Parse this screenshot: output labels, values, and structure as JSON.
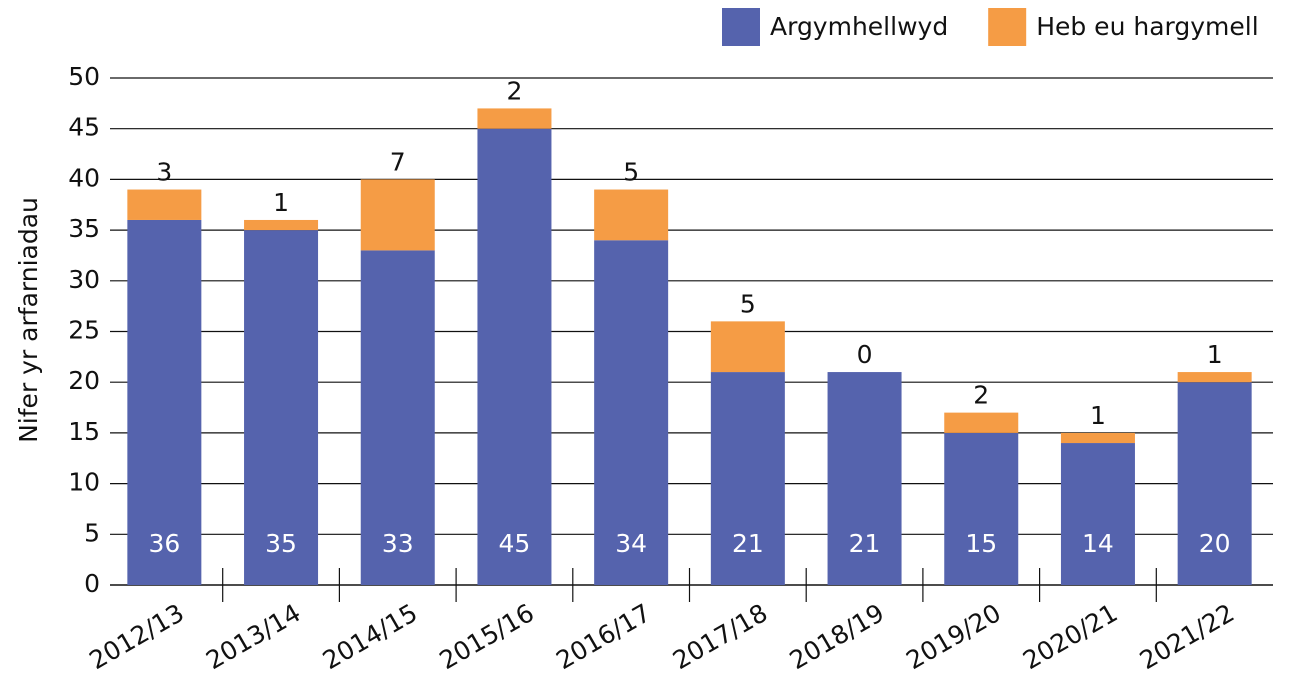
{
  "chart_data": {
    "type": "stacked_bar",
    "y_label": "Nifer yr arfarniadau",
    "categories": [
      "2012/13",
      "2013/14",
      "2014/15",
      "2015/16",
      "2016/17",
      "2017/18",
      "2018/19",
      "2019/20",
      "2020/21",
      "2021/22"
    ],
    "series": [
      {
        "name": "Argymhellwyd",
        "color": "#5563ad",
        "values": [
          36,
          35,
          33,
          45,
          34,
          21,
          21,
          15,
          14,
          20
        ]
      },
      {
        "name": "Heb eu hargymell",
        "color": "#f59c45",
        "values": [
          3,
          1,
          7,
          2,
          5,
          5,
          0,
          2,
          1,
          1
        ]
      }
    ],
    "ylim": [
      0,
      50
    ],
    "yticks": [
      0,
      5,
      10,
      15,
      20,
      25,
      30,
      35,
      40,
      45,
      50
    ],
    "grid": true,
    "legend": "top-right"
  }
}
